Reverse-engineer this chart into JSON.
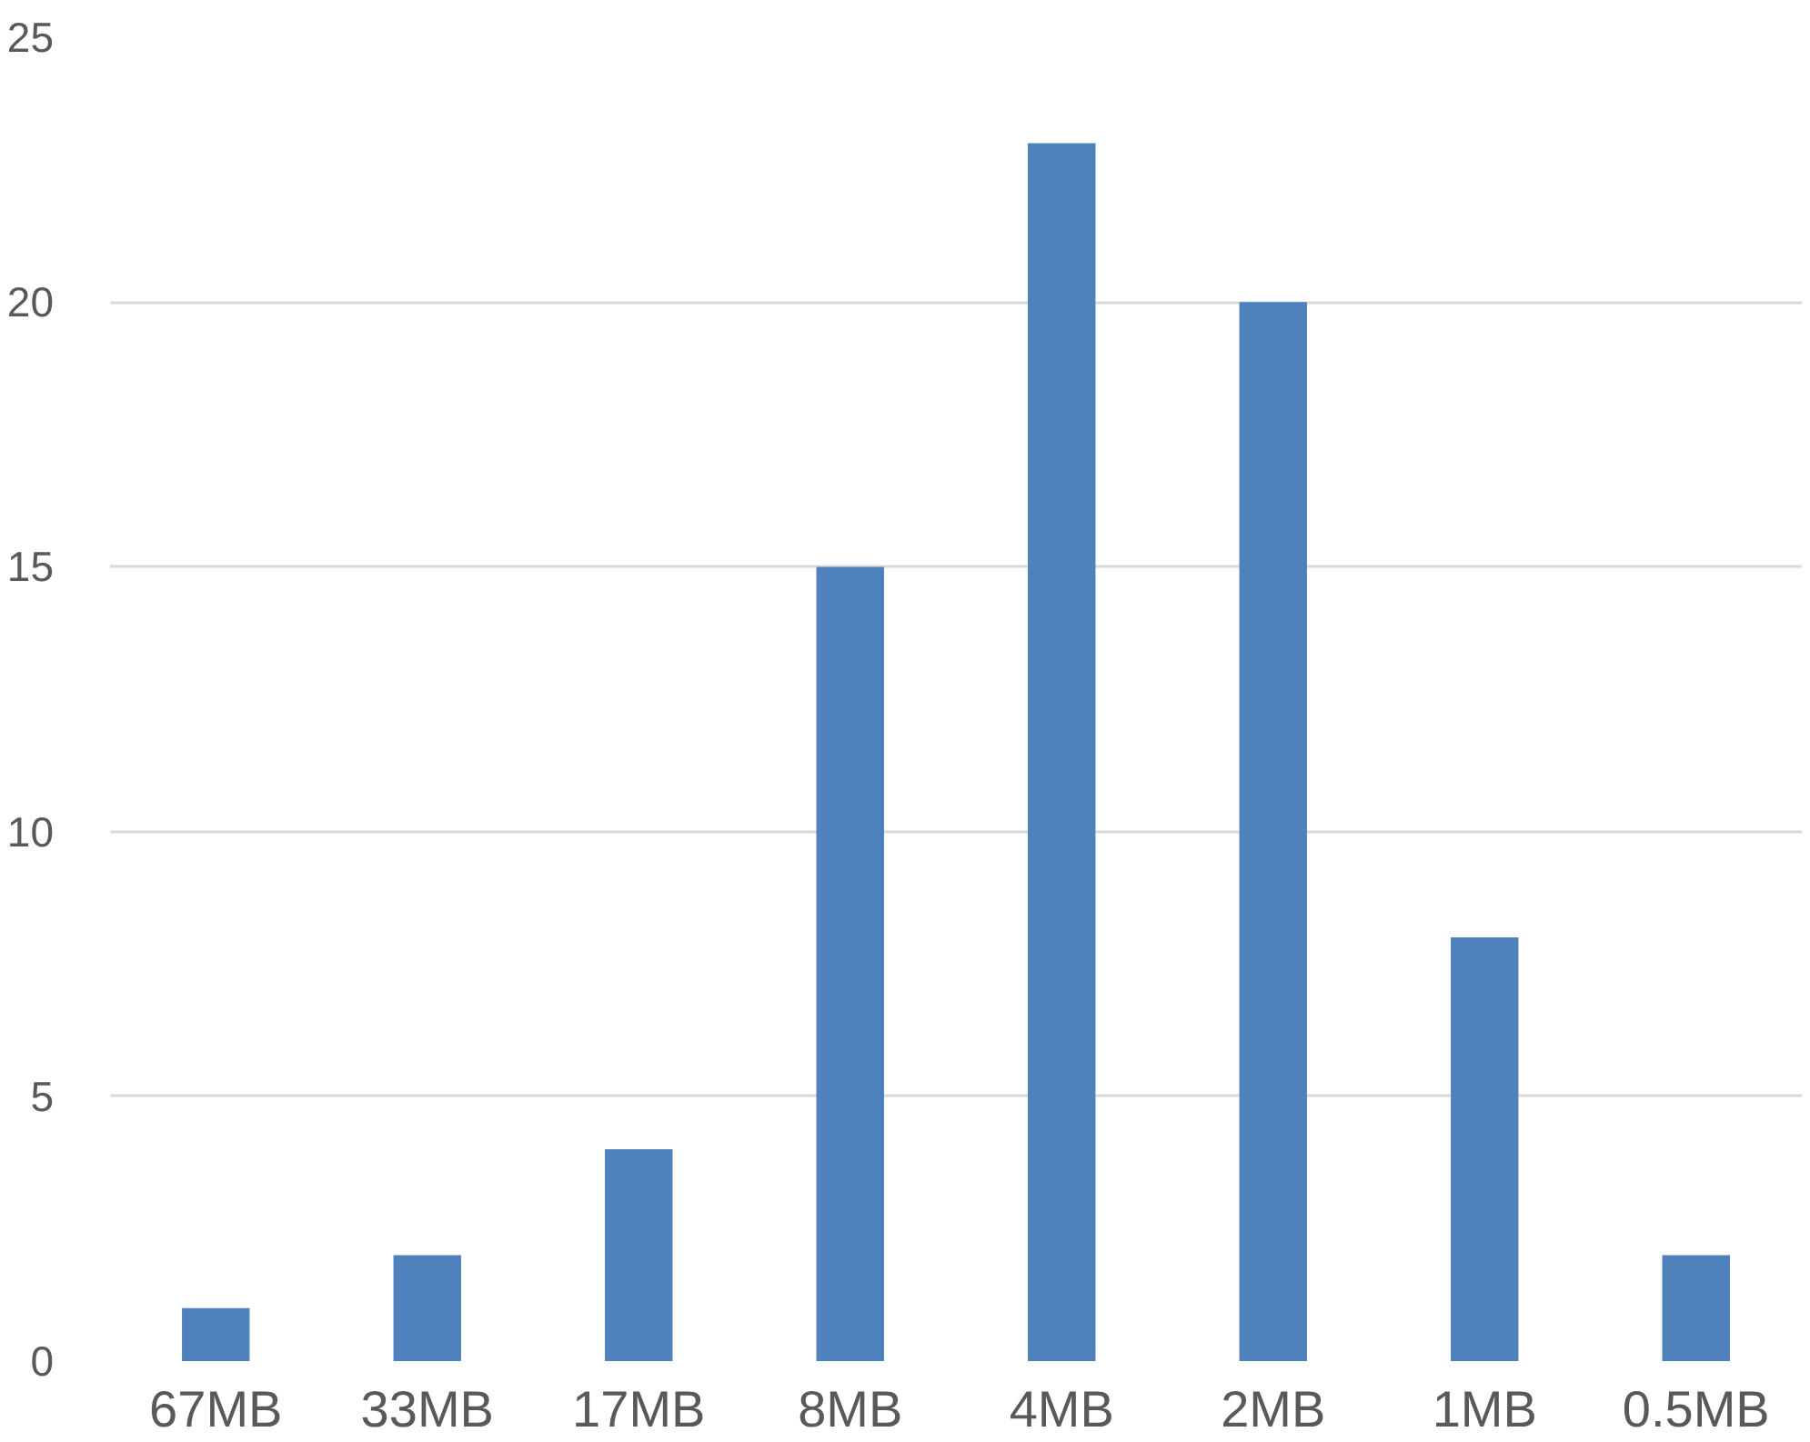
{
  "chart_data": {
    "type": "bar",
    "categories": [
      "67MB",
      "33MB",
      "17MB",
      "8MB",
      "4MB",
      "2MB",
      "1MB",
      "0.5MB"
    ],
    "values": [
      1,
      2,
      4,
      15,
      23,
      20,
      8,
      2
    ],
    "color": "#4f81bd",
    "ylim": [
      0,
      25
    ],
    "yticks": [
      0,
      5,
      10,
      15,
      20,
      25
    ],
    "grid": "y"
  }
}
